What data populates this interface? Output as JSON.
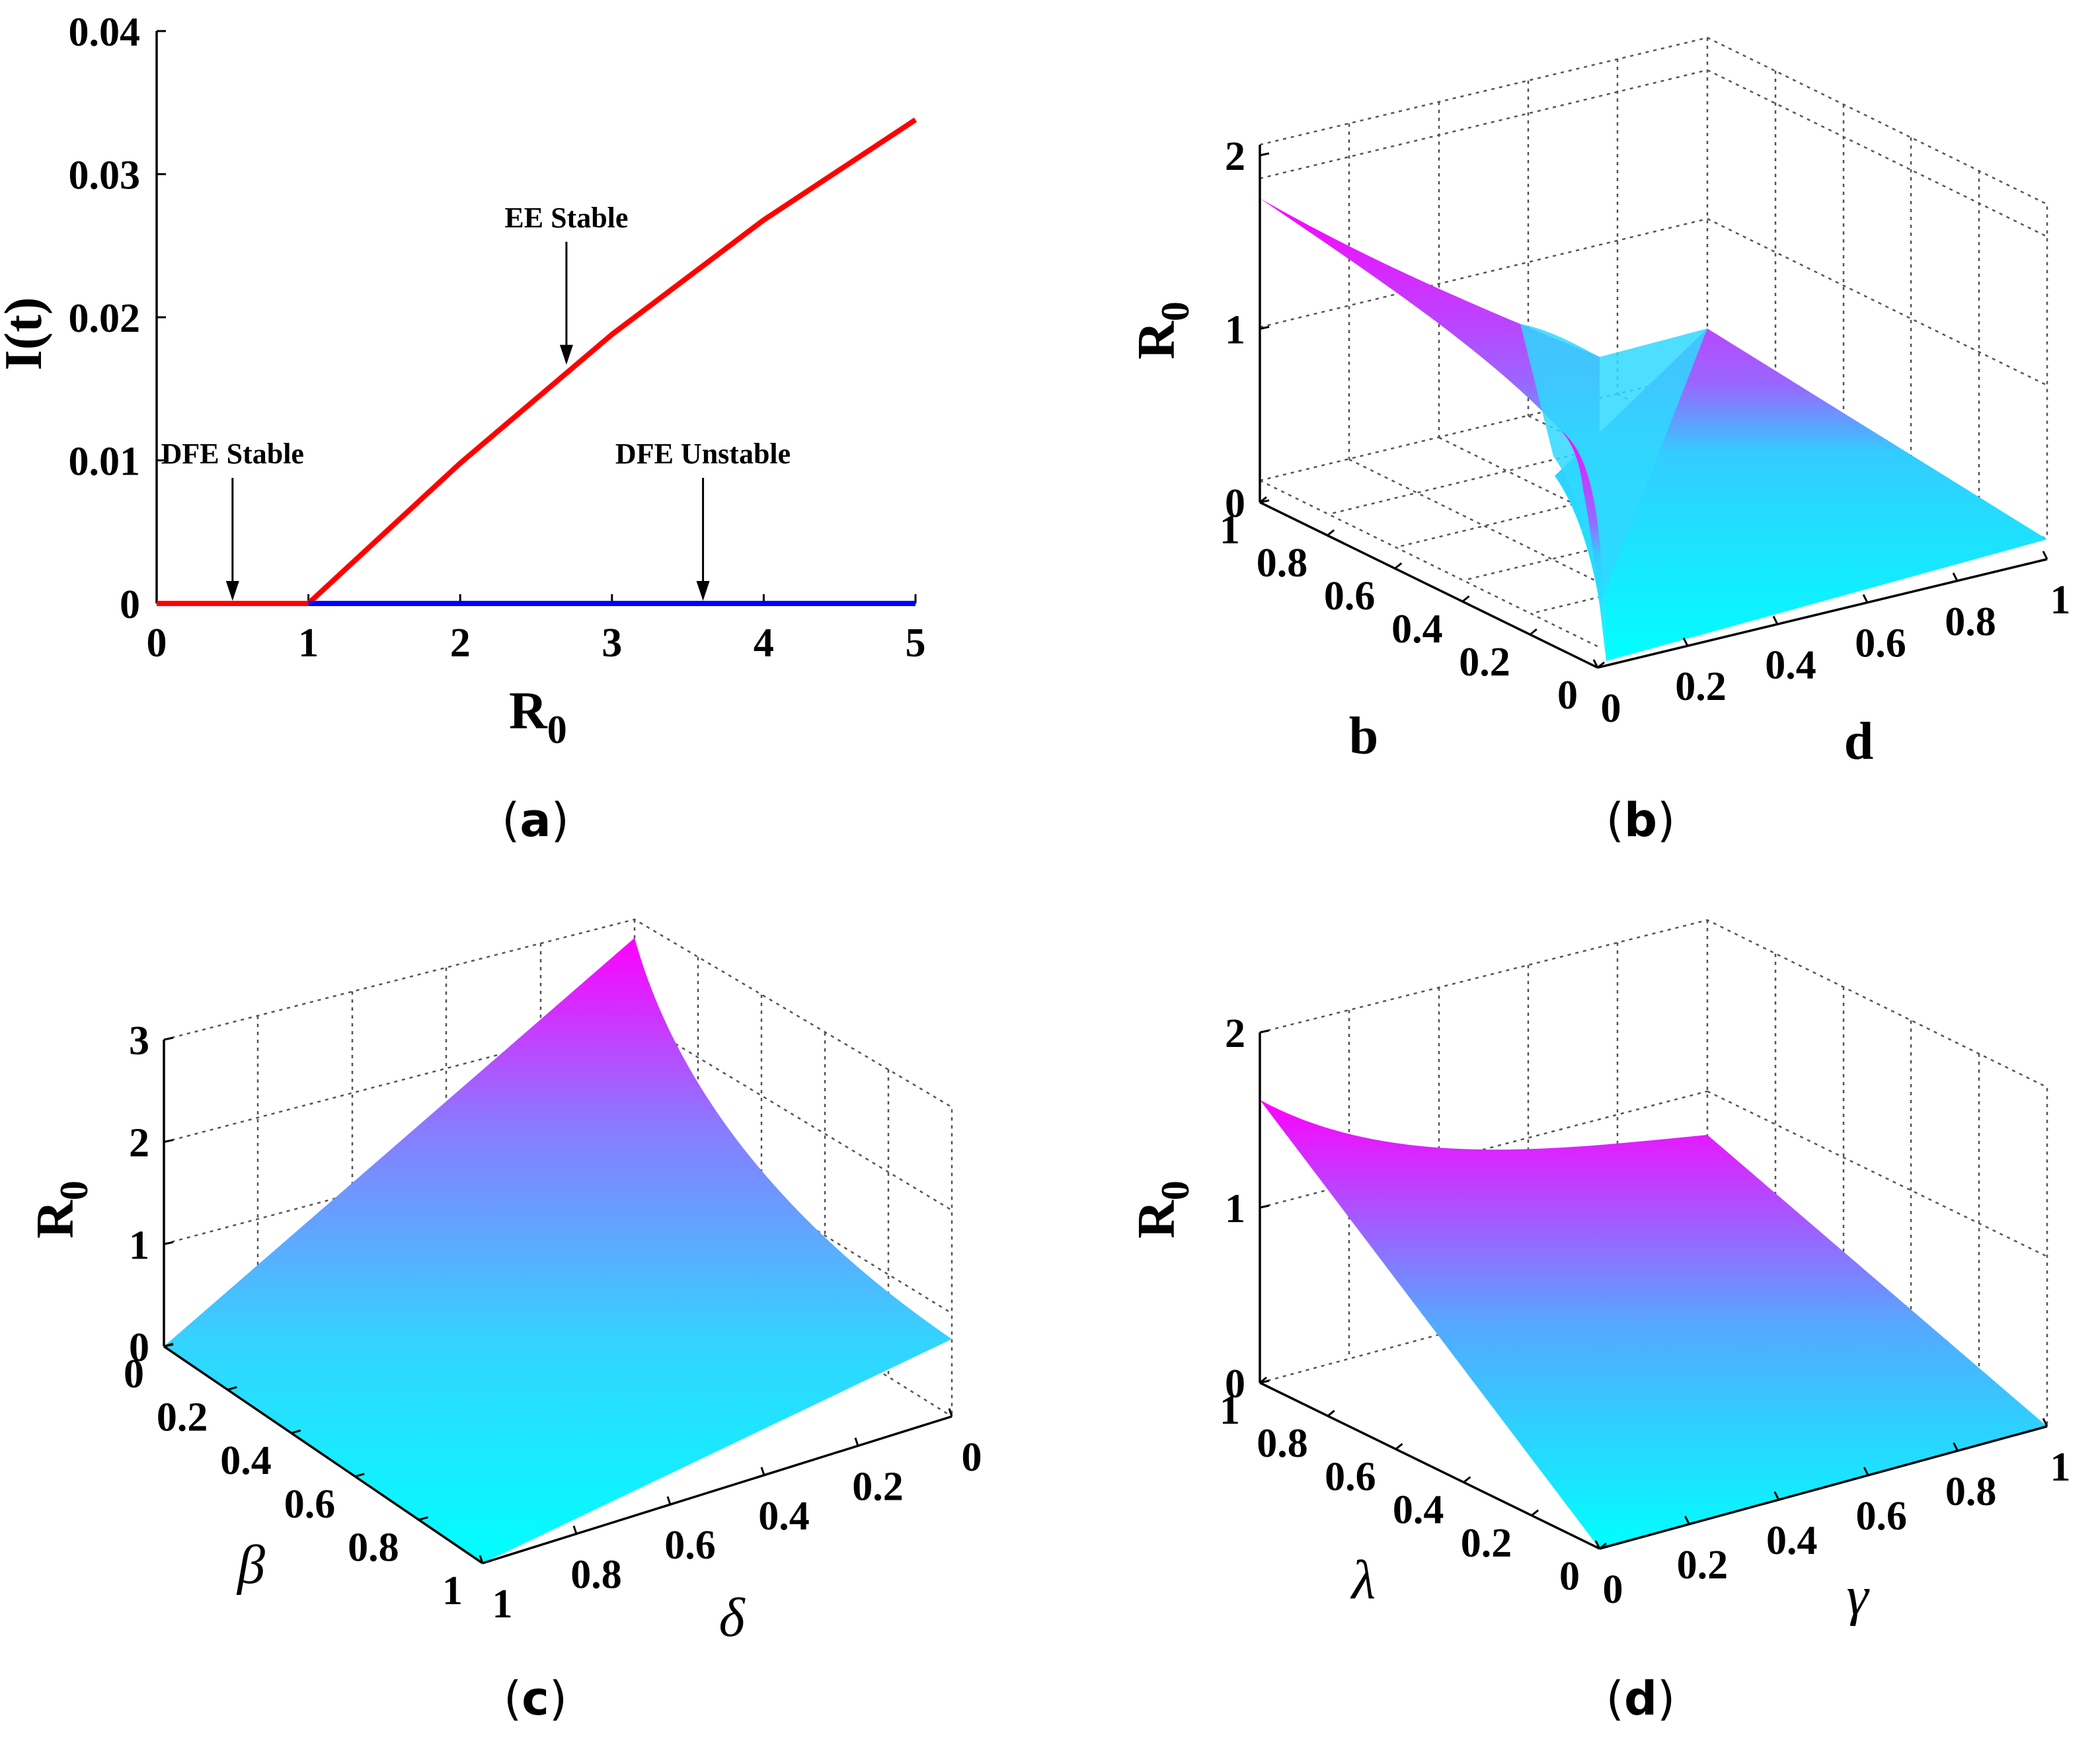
{
  "chart_data": [
    {
      "panel": "a",
      "type": "line",
      "caption": "a",
      "xlabel": "R",
      "xlabel_sub": "0",
      "ylabel": "I(t)",
      "xlim": [
        0,
        5
      ],
      "ylim": [
        0,
        0.04
      ],
      "xticks": [
        "0",
        "1",
        "2",
        "3",
        "4",
        "5"
      ],
      "yticks": [
        "0",
        "0.01",
        "0.02",
        "0.03",
        "0.04"
      ],
      "grid": false,
      "series": [
        {
          "color": "#ff0000",
          "x": [
            0,
            1,
            2,
            3,
            4,
            5
          ],
          "y": [
            0,
            0,
            0.0098,
            0.0188,
            0.0268,
            0.0338
          ]
        },
        {
          "color": "#0000ff",
          "x": [
            1,
            5
          ],
          "y": [
            0,
            0
          ]
        }
      ],
      "annotations": [
        {
          "text": "DFE Stable",
          "x": 0.5,
          "y": 0
        },
        {
          "text": "EE Stable",
          "x": 2.7,
          "y": 0.0165
        },
        {
          "text": "DFE Unstable",
          "x": 3.6,
          "y": 0
        }
      ]
    },
    {
      "panel": "b",
      "type": "surface",
      "caption": "b",
      "xlabel": "d",
      "ylabel": "b",
      "zlabel": "R",
      "zlabel_sub": "0",
      "xticks": [
        "0",
        "0.2",
        "0.4",
        "0.6",
        "0.8",
        "1"
      ],
      "yticks": [
        "0",
        "0.2",
        "0.4",
        "0.6",
        "0.8",
        "1"
      ],
      "zticks": [
        "0",
        "1",
        "2"
      ],
      "zlim": [
        0,
        2
      ],
      "corner_values": {
        "b1_d0": 1.72,
        "b1_d_small": 0.85,
        "b0_d0": 0,
        "b0_d1": 0
      },
      "colormap": [
        "#00ffff",
        "#ff00ff"
      ]
    },
    {
      "panel": "c",
      "type": "surface",
      "caption": "c",
      "xlabel": "δ",
      "ylabel": "β",
      "zlabel": "R",
      "zlabel_sub": "0",
      "xticks": [
        "0",
        "0.2",
        "0.4",
        "0.6",
        "0.8",
        "1"
      ],
      "yticks": [
        "0",
        "0.2",
        "0.4",
        "0.6",
        "0.8",
        "1"
      ],
      "zticks": [
        "0",
        "1",
        "2",
        "3"
      ],
      "zlim": [
        0,
        3
      ],
      "corner_values": {
        "beta0_delta0": 0,
        "beta1_delta1": 0,
        "beta0_delta1": 0,
        "beta1_delta0": 3.7
      },
      "colormap": [
        "#00ffff",
        "#ff00ff"
      ]
    },
    {
      "panel": "d",
      "type": "surface",
      "caption": "d",
      "xlabel": "γ",
      "ylabel": "λ",
      "zlabel": "R",
      "zlabel_sub": "0",
      "xticks": [
        "0",
        "0.2",
        "0.4",
        "0.6",
        "0.8",
        "1"
      ],
      "yticks": [
        "0",
        "0.2",
        "0.4",
        "0.6",
        "0.8",
        "1"
      ],
      "zticks": [
        "0",
        "1",
        "2"
      ],
      "zlim": [
        0,
        2
      ],
      "corner_values": {
        "lambda1_gamma0": 1.6,
        "lambda1_gamma1": 1.35,
        "lambda0_gamma0": 0,
        "lambda0_gamma1": 0
      },
      "colormap": [
        "#00ffff",
        "#ff00ff"
      ]
    }
  ]
}
